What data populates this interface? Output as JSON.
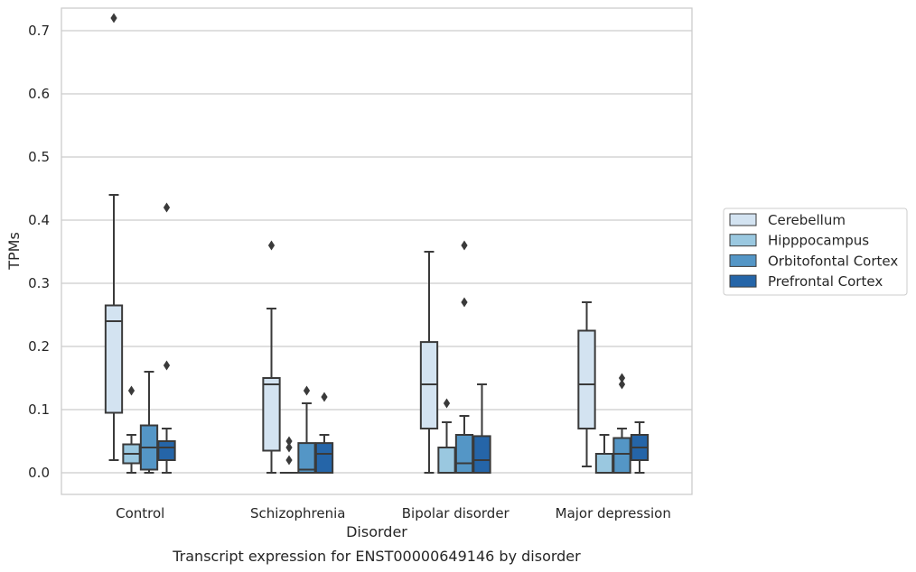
{
  "chart_data": {
    "type": "box",
    "title": "Transcript expression for ENST00000649146 by disorder",
    "xlabel": "Disorder",
    "ylabel": "TPMs",
    "ylim": [
      -0.035,
      0.76
    ],
    "yticks": [
      0.0,
      0.1,
      0.2,
      0.3,
      0.4,
      0.5,
      0.6,
      0.7
    ],
    "ytick_labels": [
      "0.0",
      "0.1",
      "0.2",
      "0.3",
      "0.4",
      "0.5",
      "0.6",
      "0.7"
    ],
    "grid": "horizontal",
    "legend_position": "right",
    "categories": [
      "Control",
      "Schizophrenia",
      "Bipolar disorder",
      "Major depression"
    ],
    "series": [
      {
        "name": "Cerebellum",
        "color": "#d3e3f1",
        "boxes": [
          {
            "whislo": 0.02,
            "q1": 0.095,
            "med": 0.24,
            "q3": 0.265,
            "whishi": 0.44,
            "fliers": [
              0.72
            ]
          },
          {
            "whislo": 0.0,
            "q1": 0.035,
            "med": 0.14,
            "q3": 0.15,
            "whishi": 0.26,
            "fliers": [
              0.36
            ]
          },
          {
            "whislo": 0.0,
            "q1": 0.07,
            "med": 0.14,
            "q3": 0.207,
            "whishi": 0.35,
            "fliers": []
          },
          {
            "whislo": 0.01,
            "q1": 0.07,
            "med": 0.14,
            "q3": 0.225,
            "whishi": 0.27,
            "fliers": []
          }
        ]
      },
      {
        "name": "Hipppocampus",
        "color": "#9ac8e0",
        "boxes": [
          {
            "whislo": 0.0,
            "q1": 0.015,
            "med": 0.03,
            "q3": 0.045,
            "whishi": 0.06,
            "fliers": [
              0.13
            ]
          },
          {
            "whislo": 0.0,
            "q1": 0.0,
            "med": 0.0,
            "q3": 0.0,
            "whishi": 0.0,
            "fliers": [
              0.05,
              0.04,
              0.02
            ]
          },
          {
            "whislo": 0.0,
            "q1": 0.0,
            "med": 0.0,
            "q3": 0.04,
            "whishi": 0.08,
            "fliers": [
              0.11
            ]
          },
          {
            "whislo": 0.0,
            "q1": 0.0,
            "med": 0.0,
            "q3": 0.03,
            "whishi": 0.06,
            "fliers": []
          }
        ]
      },
      {
        "name": "Orbitofontal Cortex",
        "color": "#5496c6",
        "boxes": [
          {
            "whislo": 0.0,
            "q1": 0.005,
            "med": 0.04,
            "q3": 0.075,
            "whishi": 0.16,
            "fliers": []
          },
          {
            "whislo": 0.0,
            "q1": 0.0,
            "med": 0.005,
            "q3": 0.047,
            "whishi": 0.11,
            "fliers": [
              0.13
            ]
          },
          {
            "whislo": 0.0,
            "q1": 0.0,
            "med": 0.015,
            "q3": 0.06,
            "whishi": 0.09,
            "fliers": [
              0.36,
              0.27
            ]
          },
          {
            "whislo": 0.0,
            "q1": 0.0,
            "med": 0.03,
            "q3": 0.055,
            "whishi": 0.07,
            "fliers": [
              0.15,
              0.14
            ]
          }
        ]
      },
      {
        "name": "Prefrontal Cortex",
        "color": "#2565a8",
        "boxes": [
          {
            "whislo": 0.0,
            "q1": 0.02,
            "med": 0.04,
            "q3": 0.05,
            "whishi": 0.07,
            "fliers": [
              0.42,
              0.17
            ]
          },
          {
            "whislo": 0.0,
            "q1": 0.0,
            "med": 0.03,
            "q3": 0.047,
            "whishi": 0.06,
            "fliers": [
              0.12
            ]
          },
          {
            "whislo": 0.0,
            "q1": 0.0,
            "med": 0.02,
            "q3": 0.058,
            "whishi": 0.14,
            "fliers": []
          },
          {
            "whislo": 0.0,
            "q1": 0.02,
            "med": 0.04,
            "q3": 0.06,
            "whishi": 0.08,
            "fliers": []
          }
        ]
      }
    ]
  }
}
